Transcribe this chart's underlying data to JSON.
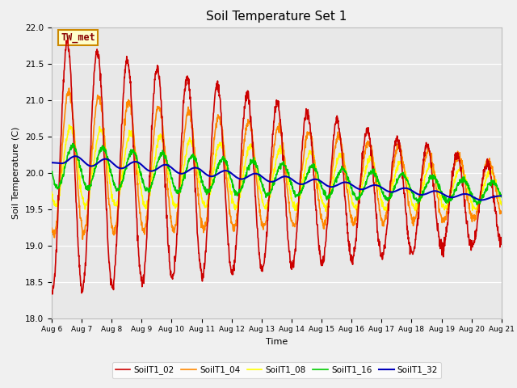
{
  "title": "Soil Temperature Set 1",
  "xlabel": "Time",
  "ylabel": "Soil Temperature (C)",
  "ylim": [
    18.0,
    22.0
  ],
  "yticks": [
    18.0,
    18.5,
    19.0,
    19.5,
    20.0,
    20.5,
    21.0,
    21.5,
    22.0
  ],
  "colors": {
    "SoilT1_02": "#cc0000",
    "SoilT1_04": "#ff8800",
    "SoilT1_08": "#ffff00",
    "SoilT1_16": "#00cc00",
    "SoilT1_32": "#0000bb"
  },
  "annotation": "TW_met",
  "annotation_color": "#880000",
  "annotation_bg": "#ffffcc",
  "annotation_border": "#cc8800",
  "bg_color": "#e8e8e8",
  "fig_bg": "#f0f0f0",
  "linewidth": 1.2,
  "n_points": 1500,
  "start_day": 6,
  "end_day": 21,
  "legend_labels": [
    "SoilT1_02",
    "SoilT1_04",
    "SoilT1_08",
    "SoilT1_16",
    "SoilT1_32"
  ],
  "xtick_labels": [
    "Aug 6",
    "Aug 7",
    "Aug 8",
    "Aug 9",
    "Aug 10",
    "Aug 11",
    "Aug 12",
    "Aug 13",
    "Aug 14",
    "Aug 15",
    "Aug 16",
    "Aug 17",
    "Aug 18",
    "Aug 19",
    "Aug 20",
    "Aug 21"
  ],
  "xtick_positions": [
    6,
    7,
    8,
    9,
    10,
    11,
    12,
    13,
    14,
    15,
    16,
    17,
    18,
    19,
    20,
    21
  ]
}
